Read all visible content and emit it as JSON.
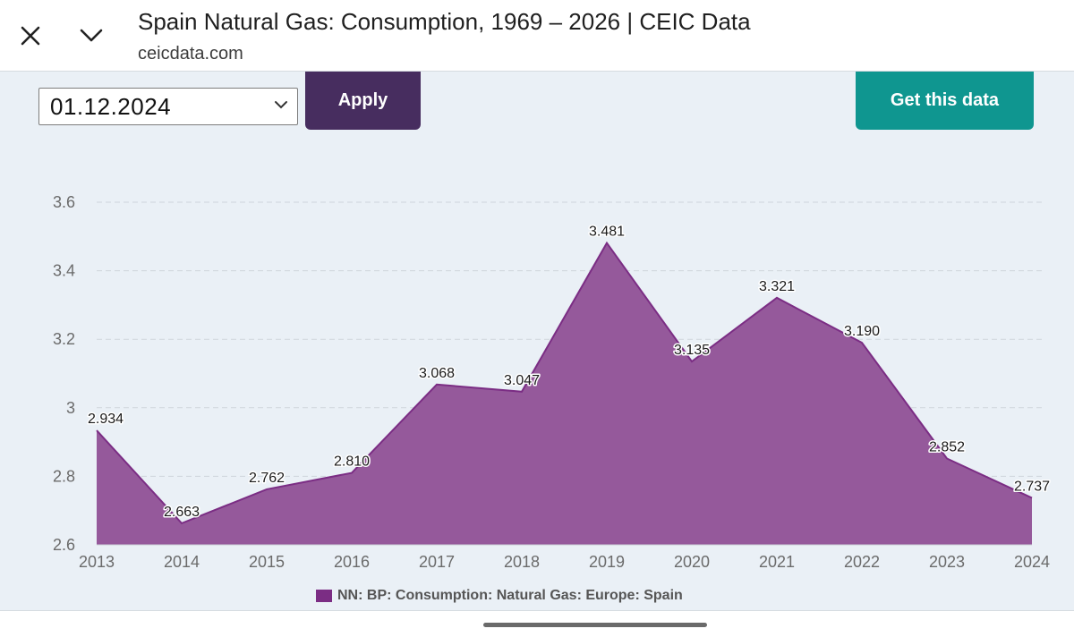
{
  "header": {
    "title": "Spain Natural Gas: Consumption, 1969 – 2026 | CEIC Data",
    "url": "ceicdata.com"
  },
  "controls": {
    "date_value": "01.12.2024",
    "apply_label": "Apply",
    "get_data_label": "Get this data"
  },
  "colors": {
    "accent": "#7b2d84",
    "area_fill": "#95599b",
    "apply_button": "#472d5f",
    "get_data_button": "#0f9690"
  },
  "icons": {
    "close": "close-icon",
    "collapse": "chevron-down-icon",
    "dropdown": "chevron-down-icon"
  },
  "chart_data": {
    "type": "area",
    "x": [
      "2013",
      "2014",
      "2015",
      "2016",
      "2017",
      "2018",
      "2019",
      "2020",
      "2021",
      "2022",
      "2023",
      "2024"
    ],
    "series": [
      {
        "name": "NN: BP: Consumption: Natural Gas: Europe: Spain",
        "values": [
          2.934,
          2.663,
          2.762,
          2.81,
          3.068,
          3.047,
          3.481,
          3.135,
          3.321,
          3.19,
          2.852,
          2.737
        ],
        "labels": [
          "2.934",
          "2.663",
          "2.762",
          "2.810",
          "3.068",
          "3.047",
          "3.481",
          "3.135",
          "3.321",
          "3.190",
          "2.852",
          "2.737"
        ]
      }
    ],
    "yticks": [
      "2.6",
      "2.8",
      "3",
      "3.2",
      "3.4",
      "3.6"
    ],
    "ytick_values": [
      2.6,
      2.8,
      3.0,
      3.2,
      3.4,
      3.6
    ],
    "ylim": [
      2.6,
      3.6
    ],
    "grid": true,
    "legend_position": "bottom-center"
  }
}
